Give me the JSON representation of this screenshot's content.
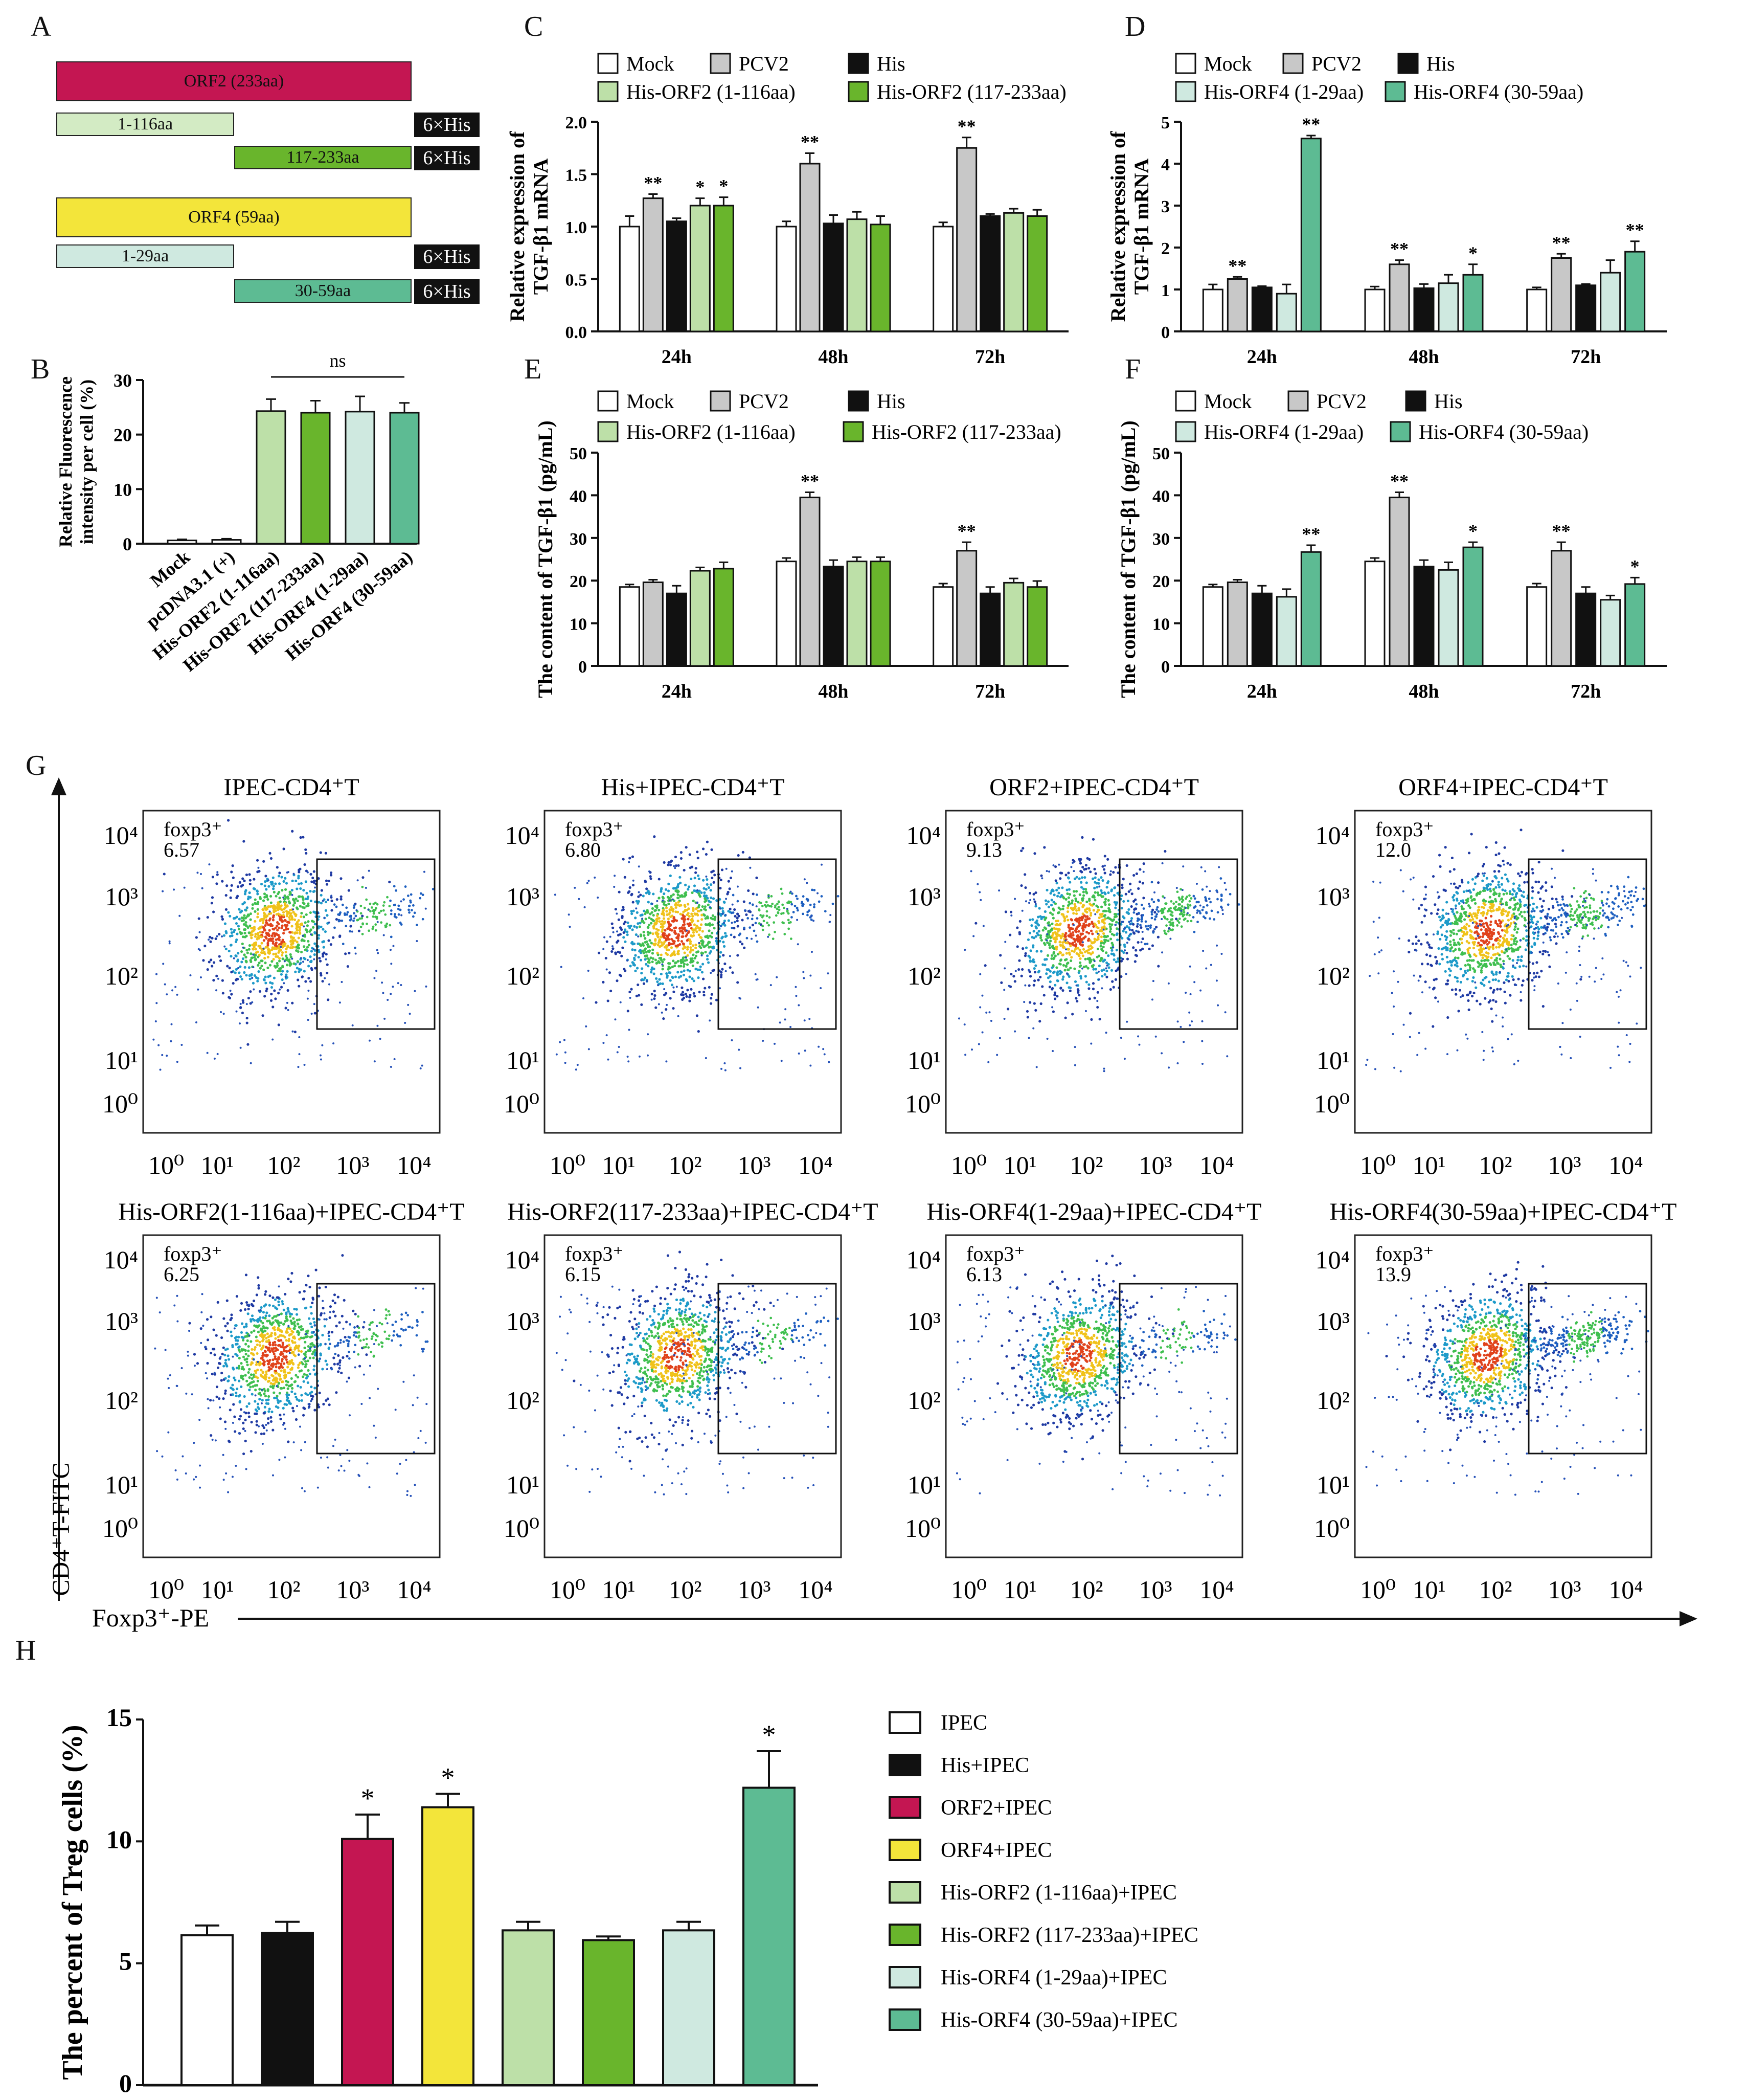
{
  "colors": {
    "mock": "#ffffff",
    "pcv2": "#c8c8c8",
    "his": "#111111",
    "orf2_1_116": "#bde0a8",
    "orf2_117_233": "#69b52c",
    "orf4_1_29": "#cfe9e0",
    "orf4_30_59": "#5dbb93",
    "orf2_full": "#c41652",
    "orf4_full": "#f3e53a",
    "axis": "#111111"
  },
  "panels": {
    "a": "A",
    "b": "B",
    "c": "C",
    "d": "D",
    "e": "E",
    "f": "F",
    "g": "G",
    "h": "H"
  },
  "panelA": {
    "orf2": "ORF2 (233aa)",
    "orf2_n": "1-116aa",
    "orf2_c": "117-233aa",
    "orf4": "ORF4 (59aa)",
    "orf4_n": "1-29aa",
    "orf4_c": "30-59aa",
    "tag": "6×His"
  },
  "legends": {
    "mock": "Mock",
    "pcv2": "PCV2",
    "his": "His",
    "orf2_n": "His-ORF2 (1-116aa)",
    "orf2_c": "His-ORF2 (117-233aa)",
    "orf4_n": "His-ORF4 (1-29aa)",
    "orf4_c": "His-ORF4 (30-59aa)"
  },
  "gate_label": "foxp3⁺",
  "flow_ticks": [
    "10⁰",
    "10¹",
    "10²",
    "10³",
    "10⁴"
  ],
  "flow_axes": {
    "y": "CD4⁺T-FITC",
    "x": "Foxp3⁺-PE"
  },
  "flow_plots": [
    {
      "title": "IPEC-CD4⁺T",
      "value": "6.57",
      "right_cluster": 0.55
    },
    {
      "title": "His+IPEC-CD4⁺T",
      "value": "6.80",
      "right_cluster": 0.6
    },
    {
      "title": "ORF2+IPEC-CD4⁺T",
      "value": "9.13",
      "right_cluster": 0.85
    },
    {
      "title": "ORF4+IPEC-CD4⁺T",
      "value": "12.0",
      "right_cluster": 1.0
    },
    {
      "title": "His-ORF2(1-116aa)+IPEC-CD4⁺T",
      "value": "6.25",
      "right_cluster": 0.5
    },
    {
      "title": "His-ORF2(117-233aa)+IPEC-CD4⁺T",
      "value": "6.15",
      "right_cluster": 0.45
    },
    {
      "title": "His-ORF4(1-29aa)+IPEC-CD4⁺T",
      "value": "6.13",
      "right_cluster": 0.45
    },
    {
      "title": "His-ORF4(30-59aa)+IPEC-CD4⁺T",
      "value": "13.9",
      "right_cluster": 1.1
    }
  ],
  "chart_data": [
    {
      "id": "B",
      "type": "bar",
      "ylabel": "Relative Fluorescence intensity per cell (%)",
      "ylim": [
        0,
        30
      ],
      "yticks": [
        0,
        10,
        20,
        30
      ],
      "categories": [
        "Mock",
        "pcDNA3.1 (+)",
        "His-ORF2 (1-116aa)",
        "His-ORF2 (117-233aa)",
        "His-ORF4 (1-29aa)",
        "His-ORF4 (30-59aa)"
      ],
      "values": [
        0.6,
        0.7,
        24.3,
        24.0,
        24.2,
        24.0
      ],
      "errors": [
        0.2,
        0.2,
        2.2,
        2.2,
        2.8,
        1.8
      ],
      "colors": [
        "#ffffff",
        "#ffffff",
        "#bde0a8",
        "#69b52c",
        "#cfe9e0",
        "#5dbb93"
      ],
      "annotation": "ns"
    },
    {
      "id": "C",
      "type": "bar",
      "ylabel": "Relative expression of TGF-β1 mRNA",
      "ylim": [
        0,
        2.0
      ],
      "yticks": [
        "0.0",
        "0.5",
        "1.0",
        "1.5",
        "2.0"
      ],
      "categories": [
        "24h",
        "48h",
        "72h"
      ],
      "series": [
        {
          "name": "Mock",
          "color": "#ffffff",
          "values": [
            1.0,
            1.0,
            1.0
          ],
          "errors": [
            0.1,
            0.05,
            0.04
          ],
          "sig": [
            "",
            "",
            ""
          ]
        },
        {
          "name": "PCV2",
          "color": "#c8c8c8",
          "values": [
            1.27,
            1.6,
            1.75
          ],
          "errors": [
            0.04,
            0.1,
            0.1
          ],
          "sig": [
            "**",
            "**",
            "**"
          ]
        },
        {
          "name": "His",
          "color": "#111111",
          "values": [
            1.05,
            1.03,
            1.1
          ],
          "errors": [
            0.03,
            0.08,
            0.02
          ],
          "sig": [
            "",
            "",
            ""
          ]
        },
        {
          "name": "His-ORF2 (1-116aa)",
          "color": "#bde0a8",
          "values": [
            1.2,
            1.07,
            1.13
          ],
          "errors": [
            0.07,
            0.07,
            0.04
          ],
          "sig": [
            "*",
            "",
            ""
          ]
        },
        {
          "name": "His-ORF2 (117-233aa)",
          "color": "#69b52c",
          "values": [
            1.2,
            1.02,
            1.1
          ],
          "errors": [
            0.08,
            0.08,
            0.06
          ],
          "sig": [
            "*",
            "",
            ""
          ]
        }
      ]
    },
    {
      "id": "D",
      "type": "bar",
      "ylabel": "Relative expression of TGF-β1 mRNA",
      "ylim": [
        0,
        5
      ],
      "yticks": [
        "0",
        "1",
        "2",
        "3",
        "4",
        "5"
      ],
      "categories": [
        "24h",
        "48h",
        "72h"
      ],
      "series": [
        {
          "name": "Mock",
          "color": "#ffffff",
          "values": [
            1.0,
            1.0,
            1.0
          ],
          "errors": [
            0.12,
            0.07,
            0.05
          ],
          "sig": [
            "",
            "",
            ""
          ]
        },
        {
          "name": "PCV2",
          "color": "#c8c8c8",
          "values": [
            1.25,
            1.6,
            1.75
          ],
          "errors": [
            0.05,
            0.1,
            0.1
          ],
          "sig": [
            "**",
            "**",
            "**"
          ]
        },
        {
          "name": "His",
          "color": "#111111",
          "values": [
            1.05,
            1.03,
            1.1
          ],
          "errors": [
            0.03,
            0.1,
            0.03
          ],
          "sig": [
            "",
            "",
            ""
          ]
        },
        {
          "name": "His-ORF4 (1-29aa)",
          "color": "#cfe9e0",
          "values": [
            0.9,
            1.15,
            1.4
          ],
          "errors": [
            0.22,
            0.2,
            0.3
          ],
          "sig": [
            "",
            "",
            ""
          ]
        },
        {
          "name": "His-ORF4 (30-59aa)",
          "color": "#5dbb93",
          "values": [
            4.6,
            1.35,
            1.9
          ],
          "errors": [
            0.07,
            0.25,
            0.25
          ],
          "sig": [
            "**",
            "*",
            "**"
          ]
        }
      ]
    },
    {
      "id": "E",
      "type": "bar",
      "ylabel": "The content of TGF-β1 (pg/mL)",
      "ylim": [
        0,
        50
      ],
      "yticks": [
        "0",
        "10",
        "20",
        "30",
        "40",
        "50"
      ],
      "categories": [
        "24h",
        "48h",
        "72h"
      ],
      "series": [
        {
          "name": "Mock",
          "color": "#ffffff",
          "values": [
            18.5,
            24.5,
            18.5
          ],
          "errors": [
            0.6,
            0.8,
            0.8
          ],
          "sig": [
            "",
            "",
            ""
          ]
        },
        {
          "name": "PCV2",
          "color": "#c8c8c8",
          "values": [
            19.6,
            39.5,
            27
          ],
          "errors": [
            0.6,
            1.2,
            2.0
          ],
          "sig": [
            "",
            "**",
            "**"
          ]
        },
        {
          "name": "His",
          "color": "#111111",
          "values": [
            17,
            23.3,
            17
          ],
          "errors": [
            1.8,
            1.5,
            1.5
          ],
          "sig": [
            "",
            "",
            ""
          ]
        },
        {
          "name": "His-ORF2 (1-116aa)",
          "color": "#bde0a8",
          "values": [
            22.3,
            24.5,
            19.5
          ],
          "errors": [
            0.8,
            1.0,
            1.0
          ],
          "sig": [
            "",
            "",
            ""
          ]
        },
        {
          "name": "His-ORF2 (117-233aa)",
          "color": "#69b52c",
          "values": [
            22.8,
            24.5,
            18.5
          ],
          "errors": [
            1.5,
            1.0,
            1.4
          ],
          "sig": [
            "",
            "",
            ""
          ]
        }
      ]
    },
    {
      "id": "F",
      "type": "bar",
      "ylabel": "The content of TGF-β1 (pg/mL)",
      "ylim": [
        0,
        50
      ],
      "yticks": [
        "0",
        "10",
        "20",
        "30",
        "40",
        "50"
      ],
      "categories": [
        "24h",
        "48h",
        "72h"
      ],
      "series": [
        {
          "name": "Mock",
          "color": "#ffffff",
          "values": [
            18.5,
            24.5,
            18.5
          ],
          "errors": [
            0.6,
            0.8,
            0.8
          ],
          "sig": [
            "",
            "",
            ""
          ]
        },
        {
          "name": "PCV2",
          "color": "#c8c8c8",
          "values": [
            19.6,
            39.5,
            27
          ],
          "errors": [
            0.6,
            1.2,
            2.0
          ],
          "sig": [
            "",
            "**",
            "**"
          ]
        },
        {
          "name": "His",
          "color": "#111111",
          "values": [
            17,
            23.3,
            17
          ],
          "errors": [
            1.8,
            1.5,
            1.5
          ],
          "sig": [
            "",
            "",
            ""
          ]
        },
        {
          "name": "His-ORF4 (1-29aa)",
          "color": "#cfe9e0",
          "values": [
            16.2,
            22.5,
            15.5
          ],
          "errors": [
            1.8,
            1.8,
            1.0
          ],
          "sig": [
            "",
            "",
            ""
          ]
        },
        {
          "name": "His-ORF4 (30-59aa)",
          "color": "#5dbb93",
          "values": [
            26.7,
            27.8,
            19.2
          ],
          "errors": [
            1.6,
            1.2,
            1.5
          ],
          "sig": [
            "**",
            "*",
            "*"
          ]
        }
      ]
    },
    {
      "id": "H",
      "type": "bar",
      "ylabel": "The percent of Treg cells (%)",
      "ylim": [
        0,
        15
      ],
      "yticks": [
        "0",
        "5",
        "10",
        "15"
      ],
      "categories": [
        "IPEC",
        "His+IPEC",
        "ORF2+IPEC",
        "ORF4+IPEC",
        "His-ORF2 (1-116aa)+IPEC",
        "His-ORF2 (117-233aa)+IPEC",
        "His-ORF4 (1-29aa)+IPEC",
        "His-ORF4 (30-59aa)+IPEC"
      ],
      "values": [
        6.15,
        6.25,
        10.1,
        11.4,
        6.35,
        5.95,
        6.35,
        12.2
      ],
      "errors": [
        0.4,
        0.45,
        1.0,
        0.55,
        0.35,
        0.15,
        0.35,
        1.5
      ],
      "sig": [
        "",
        "",
        "*",
        "*",
        "",
        "",
        "",
        "*"
      ],
      "colors": [
        "#ffffff",
        "#111111",
        "#c41652",
        "#f3e53a",
        "#bde0a8",
        "#69b52c",
        "#cfe9e0",
        "#5dbb93"
      ]
    }
  ]
}
